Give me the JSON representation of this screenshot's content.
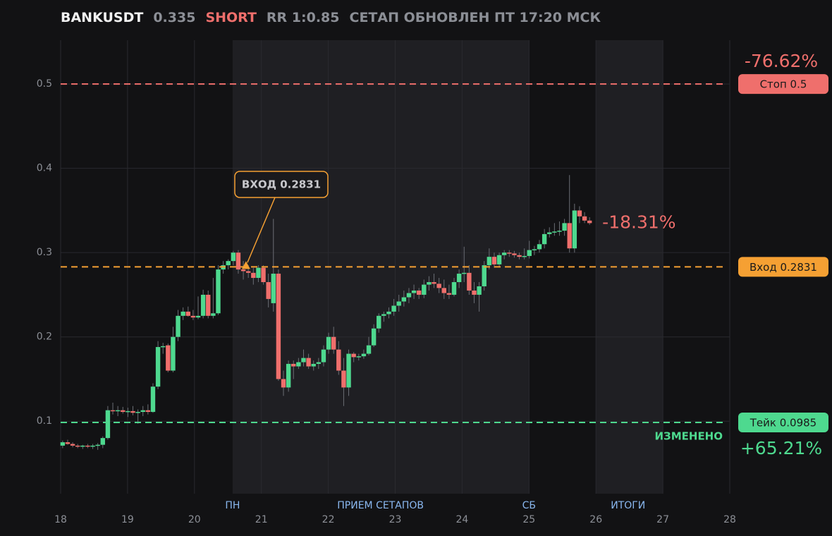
{
  "header": {
    "symbol": "BANKUSDT",
    "price": "0.335",
    "side": "SHORT",
    "rr": "RR 1:0.85",
    "updated": "СЕТАП ОБНОВЛЕН ПТ 17:20 МСК"
  },
  "chart_data": {
    "type": "candlestick",
    "xlim": [
      18,
      28
    ],
    "xticks": [
      18,
      19,
      20,
      21,
      22,
      23,
      24,
      25,
      26,
      27,
      28
    ],
    "ylim": [
      0.014,
      0.552
    ],
    "yticks": [
      0.1,
      0.2,
      0.3,
      0.4,
      0.5
    ],
    "grid": true,
    "up_color": "#4ed98f",
    "down_color": "#ef6f6c",
    "shaded": [
      [
        20.57,
        25.0
      ],
      [
        26,
        27
      ]
    ],
    "bottom_labels": [
      {
        "label": "ПН",
        "x": 20.57
      },
      {
        "label": "ПРИЕМ СЕТАПОВ",
        "x": 22.78
      },
      {
        "label": "СБ",
        "x": 25.0
      },
      {
        "label": "ИТОГИ",
        "x": 26.48
      }
    ],
    "levels": [
      {
        "label": "Стоп 0.5",
        "value": 0.5,
        "color": "#ef6f6c",
        "change": "-76.62%"
      },
      {
        "label": "Вход 0.2831",
        "value": 0.2831,
        "color": "#f5a033"
      },
      {
        "label": "Тейк 0.0985",
        "value": 0.0985,
        "color": "#4ed98f",
        "change": "+65.21%",
        "note": "ИЗМЕНЕНО"
      }
    ],
    "current_change": "-18.31%",
    "annotation": {
      "text": "ВХОД 0.2831",
      "x": 20.77,
      "y": 0.2831
    },
    "x": [
      18.03,
      18.105,
      18.18,
      18.255,
      18.33,
      18.405,
      18.48,
      18.555,
      18.63,
      18.705,
      18.78,
      18.855,
      18.93,
      19.005,
      19.08,
      19.155,
      19.23,
      19.305,
      19.38,
      19.455,
      19.53,
      19.605,
      19.68,
      19.755,
      19.83,
      19.905,
      19.98,
      20.055,
      20.13,
      20.205,
      20.28,
      20.355,
      20.43,
      20.505,
      20.58,
      20.655,
      20.73,
      20.805,
      20.88,
      20.955,
      21.03,
      21.105,
      21.18,
      21.255,
      21.33,
      21.405,
      21.48,
      21.555,
      21.63,
      21.705,
      21.78,
      21.855,
      21.93,
      22.005,
      22.08,
      22.155,
      22.23,
      22.305,
      22.38,
      22.455,
      22.53,
      22.605,
      22.68,
      22.755,
      22.83,
      22.905,
      22.98,
      23.055,
      23.13,
      23.205,
      23.28,
      23.355,
      23.43,
      23.505,
      23.58,
      23.655,
      23.73,
      23.805,
      23.88,
      23.955,
      24.03,
      24.105,
      24.18,
      24.255,
      24.33,
      24.405,
      24.48,
      24.555,
      24.63,
      24.705,
      24.78,
      24.855,
      24.93,
      25.005,
      25.08,
      25.155,
      25.23,
      25.305,
      25.38,
      25.455,
      25.53,
      25.605,
      25.68,
      25.755,
      25.83,
      25.905
    ],
    "open": [
      0.071,
      0.075,
      0.073,
      0.071,
      0.07,
      0.071,
      0.07,
      0.071,
      0.072,
      0.08,
      0.113,
      0.112,
      0.113,
      0.111,
      0.112,
      0.11,
      0.111,
      0.113,
      0.111,
      0.141,
      0.188,
      0.19,
      0.16,
      0.2,
      0.225,
      0.23,
      0.225,
      0.223,
      0.225,
      0.25,
      0.225,
      0.228,
      0.28,
      0.285,
      0.29,
      0.3,
      0.28,
      0.278,
      0.276,
      0.27,
      0.282,
      0.265,
      0.24,
      0.275,
      0.15,
      0.14,
      0.168,
      0.165,
      0.17,
      0.175,
      0.165,
      0.168,
      0.17,
      0.185,
      0.2,
      0.185,
      0.16,
      0.14,
      0.18,
      0.176,
      0.177,
      0.18,
      0.19,
      0.21,
      0.225,
      0.227,
      0.23,
      0.237,
      0.242,
      0.247,
      0.252,
      0.255,
      0.25,
      0.262,
      0.265,
      0.263,
      0.258,
      0.252,
      0.25,
      0.265,
      0.275,
      0.276,
      0.255,
      0.25,
      0.26,
      0.285,
      0.295,
      0.286,
      0.297,
      0.3,
      0.299,
      0.297,
      0.295,
      0.296,
      0.303,
      0.304,
      0.31,
      0.322,
      0.324,
      0.325,
      0.326,
      0.335,
      0.305,
      0.35,
      0.343,
      0.338
    ],
    "high": [
      0.077,
      0.078,
      0.075,
      0.073,
      0.072,
      0.073,
      0.073,
      0.074,
      0.082,
      0.118,
      0.122,
      0.118,
      0.117,
      0.116,
      0.118,
      0.114,
      0.118,
      0.12,
      0.145,
      0.195,
      0.193,
      0.192,
      0.212,
      0.232,
      0.235,
      0.236,
      0.232,
      0.248,
      0.256,
      0.255,
      0.27,
      0.285,
      0.29,
      0.292,
      0.302,
      0.303,
      0.29,
      0.285,
      0.282,
      0.285,
      0.285,
      0.275,
      0.34,
      0.28,
      0.16,
      0.172,
      0.172,
      0.175,
      0.185,
      0.18,
      0.172,
      0.175,
      0.19,
      0.205,
      0.212,
      0.195,
      0.175,
      0.185,
      0.182,
      0.18,
      0.185,
      0.2,
      0.215,
      0.228,
      0.23,
      0.235,
      0.245,
      0.25,
      0.255,
      0.258,
      0.262,
      0.258,
      0.268,
      0.272,
      0.275,
      0.27,
      0.268,
      0.262,
      0.27,
      0.28,
      0.307,
      0.285,
      0.265,
      0.265,
      0.29,
      0.305,
      0.3,
      0.3,
      0.303,
      0.303,
      0.302,
      0.3,
      0.305,
      0.314,
      0.308,
      0.315,
      0.328,
      0.33,
      0.335,
      0.337,
      0.34,
      0.392,
      0.358,
      0.355,
      0.348,
      0.342
    ],
    "low": [
      0.068,
      0.072,
      0.069,
      0.068,
      0.067,
      0.068,
      0.067,
      0.066,
      0.068,
      0.078,
      0.108,
      0.106,
      0.109,
      0.105,
      0.107,
      0.097,
      0.106,
      0.108,
      0.11,
      0.138,
      0.18,
      0.158,
      0.158,
      0.195,
      0.22,
      0.224,
      0.22,
      0.221,
      0.222,
      0.222,
      0.222,
      0.226,
      0.275,
      0.28,
      0.285,
      0.275,
      0.268,
      0.27,
      0.262,
      0.265,
      0.262,
      0.235,
      0.23,
      0.148,
      0.13,
      0.135,
      0.15,
      0.162,
      0.165,
      0.162,
      0.16,
      0.162,
      0.165,
      0.18,
      0.18,
      0.155,
      0.118,
      0.13,
      0.17,
      0.172,
      0.174,
      0.178,
      0.188,
      0.205,
      0.218,
      0.222,
      0.225,
      0.23,
      0.236,
      0.24,
      0.245,
      0.245,
      0.246,
      0.255,
      0.258,
      0.252,
      0.245,
      0.245,
      0.248,
      0.258,
      0.265,
      0.25,
      0.24,
      0.23,
      0.255,
      0.28,
      0.282,
      0.283,
      0.292,
      0.295,
      0.294,
      0.292,
      0.292,
      0.293,
      0.297,
      0.3,
      0.305,
      0.318,
      0.32,
      0.32,
      0.32,
      0.3,
      0.3,
      0.335,
      0.335,
      0.333
    ],
    "close": [
      0.075,
      0.073,
      0.071,
      0.07,
      0.071,
      0.07,
      0.071,
      0.072,
      0.08,
      0.113,
      0.112,
      0.113,
      0.111,
      0.112,
      0.11,
      0.111,
      0.113,
      0.111,
      0.141,
      0.188,
      0.189,
      0.16,
      0.2,
      0.225,
      0.23,
      0.225,
      0.223,
      0.225,
      0.25,
      0.225,
      0.228,
      0.28,
      0.285,
      0.29,
      0.3,
      0.28,
      0.278,
      0.276,
      0.27,
      0.282,
      0.265,
      0.245,
      0.275,
      0.15,
      0.14,
      0.168,
      0.165,
      0.17,
      0.175,
      0.165,
      0.168,
      0.17,
      0.185,
      0.2,
      0.185,
      0.16,
      0.14,
      0.18,
      0.176,
      0.177,
      0.18,
      0.19,
      0.21,
      0.225,
      0.227,
      0.23,
      0.237,
      0.242,
      0.247,
      0.252,
      0.255,
      0.25,
      0.262,
      0.265,
      0.263,
      0.258,
      0.252,
      0.25,
      0.265,
      0.275,
      0.276,
      0.255,
      0.25,
      0.26,
      0.285,
      0.295,
      0.286,
      0.297,
      0.3,
      0.299,
      0.297,
      0.295,
      0.296,
      0.303,
      0.304,
      0.31,
      0.322,
      0.324,
      0.325,
      0.326,
      0.335,
      0.305,
      0.35,
      0.343,
      0.338,
      0.335
    ]
  }
}
